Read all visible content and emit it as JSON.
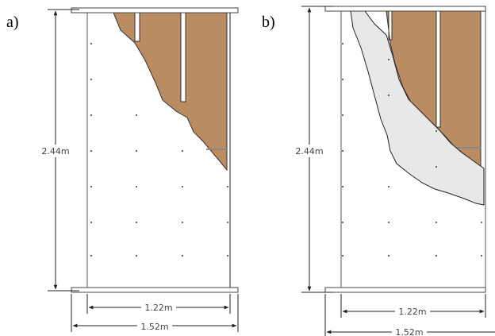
{
  "panels": [
    {
      "label": "a)",
      "height": "2.44m",
      "inner_width": "1.22m",
      "outer_width": "1.52m"
    },
    {
      "label": "b)",
      "height": "2.44m",
      "inner_width": "1.22m",
      "outer_width": "1.52m"
    }
  ]
}
